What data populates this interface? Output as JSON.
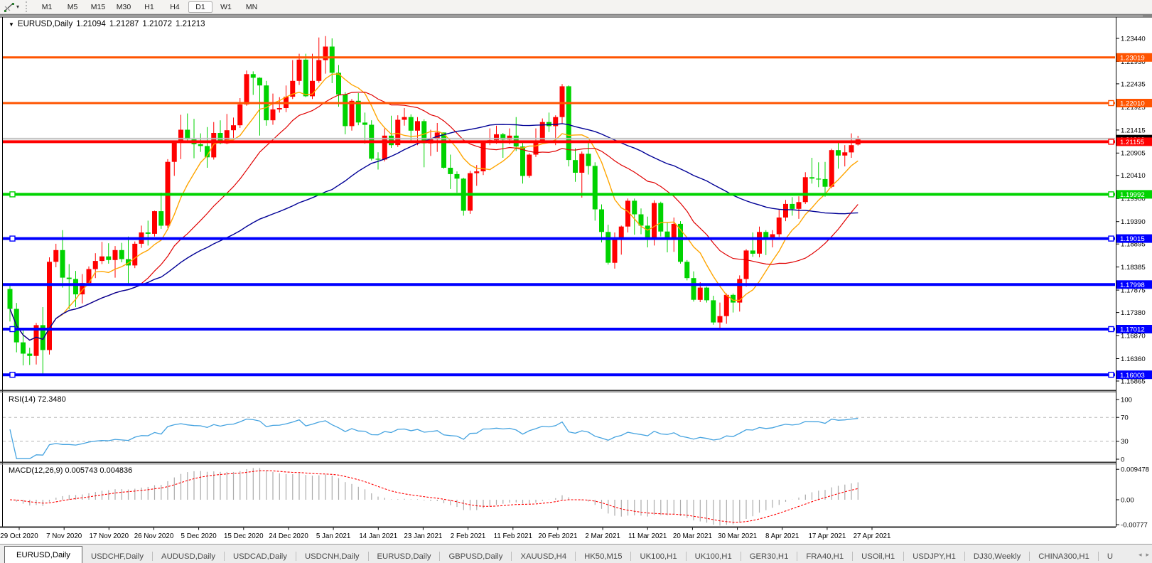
{
  "toolbar": {
    "tool_icon": "line-studies-icon",
    "timeframes": [
      "M1",
      "M5",
      "M15",
      "M30",
      "H1",
      "H4",
      "D1",
      "W1",
      "MN"
    ],
    "active_timeframe": "D1"
  },
  "chart_window": {
    "title": {
      "symbol": "EURUSD,Daily",
      "open": "1.21094",
      "high": "1.21287",
      "low": "1.21072",
      "close": "1.21213"
    },
    "indicators": {
      "rsi_label": "RSI(14) 72.3480",
      "macd_label": "MACD(12,26,9) 0.005743 0.004836"
    }
  },
  "chart_data": {
    "type": "candlestick",
    "symbol": "EURUSD",
    "timeframe": "Daily",
    "last_candle": {
      "open": 1.21094,
      "high": 1.21287,
      "low": 1.21072,
      "close": 1.21213
    },
    "bid_price": 1.21213,
    "bid_label": "1.21213",
    "ask_price": 1.21233,
    "bull_color": "#ff0000",
    "bear_color": "#00d300",
    "candles": [
      [
        1.179,
        1.1797,
        1.1718,
        1.1746
      ],
      [
        1.1746,
        1.1759,
        1.165,
        1.1672
      ],
      [
        1.1672,
        1.1704,
        1.1621,
        1.1647
      ],
      [
        1.1647,
        1.166,
        1.1622,
        1.1642
      ],
      [
        1.1642,
        1.1715,
        1.1623,
        1.171
      ],
      [
        1.171,
        1.175,
        1.1602,
        1.1655
      ],
      [
        1.1655,
        1.186,
        1.1645,
        1.185
      ],
      [
        1.185,
        1.189,
        1.1838,
        1.1876
      ],
      [
        1.1876,
        1.192,
        1.1793,
        1.1815
      ],
      [
        1.1815,
        1.1845,
        1.1745,
        1.1812
      ],
      [
        1.1812,
        1.183,
        1.175,
        1.1778
      ],
      [
        1.1778,
        1.1823,
        1.1758,
        1.1803
      ],
      [
        1.1803,
        1.184,
        1.1799,
        1.1834
      ],
      [
        1.1834,
        1.1869,
        1.1814,
        1.1852
      ],
      [
        1.1852,
        1.1894,
        1.1845,
        1.1862
      ],
      [
        1.1862,
        1.1891,
        1.1846,
        1.1854
      ],
      [
        1.1854,
        1.1885,
        1.1815,
        1.1876
      ],
      [
        1.1876,
        1.1892,
        1.1849,
        1.1856
      ],
      [
        1.1856,
        1.1906,
        1.18,
        1.1842
      ],
      [
        1.1842,
        1.1895,
        1.1836,
        1.189
      ],
      [
        1.189,
        1.193,
        1.1881,
        1.1915
      ],
      [
        1.1915,
        1.1941,
        1.1886,
        1.1912
      ],
      [
        1.1912,
        1.1963,
        1.1906,
        1.1962
      ],
      [
        1.1962,
        1.2003,
        1.1923,
        1.193
      ],
      [
        1.193,
        1.2077,
        1.1925,
        1.2071
      ],
      [
        1.2071,
        1.2118,
        1.204,
        1.2115
      ],
      [
        1.2115,
        1.2175,
        1.2077,
        1.2142
      ],
      [
        1.2142,
        1.2178,
        1.2115,
        1.2121
      ],
      [
        1.2121,
        1.2166,
        1.2079,
        1.211
      ],
      [
        1.211,
        1.2134,
        1.2093,
        1.2106
      ],
      [
        1.2106,
        1.2148,
        1.2058,
        1.2081
      ],
      [
        1.2081,
        1.2159,
        1.2076,
        1.2135
      ],
      [
        1.2135,
        1.2163,
        1.211,
        1.2112
      ],
      [
        1.2112,
        1.2177,
        1.211,
        1.2141
      ],
      [
        1.2141,
        1.2169,
        1.2122,
        1.2152
      ],
      [
        1.2152,
        1.2212,
        1.2146,
        1.2198
      ],
      [
        1.2198,
        1.2273,
        1.2195,
        1.2265
      ],
      [
        1.2265,
        1.2271,
        1.2219,
        1.2257
      ],
      [
        1.2257,
        1.2258,
        1.2129,
        1.224
      ],
      [
        1.224,
        1.225,
        1.2151,
        1.2163
      ],
      [
        1.2163,
        1.2222,
        1.2153,
        1.2187
      ],
      [
        1.2187,
        1.2214,
        1.218,
        1.219
      ],
      [
        1.219,
        1.224,
        1.2181,
        1.2215
      ],
      [
        1.2215,
        1.2296,
        1.221,
        1.225
      ],
      [
        1.225,
        1.231,
        1.2241,
        1.2297
      ],
      [
        1.2297,
        1.231,
        1.2214,
        1.2216
      ],
      [
        1.2216,
        1.231,
        1.221,
        1.225
      ],
      [
        1.225,
        1.2346,
        1.2246,
        1.2296
      ],
      [
        1.2296,
        1.2349,
        1.2266,
        1.2326
      ],
      [
        1.2326,
        1.2344,
        1.2245,
        1.2268
      ],
      [
        1.2268,
        1.2285,
        1.2193,
        1.222
      ],
      [
        1.222,
        1.2225,
        1.2132,
        1.215
      ],
      [
        1.215,
        1.221,
        1.214,
        1.2206
      ],
      [
        1.2206,
        1.2223,
        1.2152,
        1.2158
      ],
      [
        1.2158,
        1.218,
        1.2111,
        1.2153
      ],
      [
        1.2153,
        1.2163,
        1.2074,
        1.2078
      ],
      [
        1.2078,
        1.2092,
        1.2054,
        1.2076
      ],
      [
        1.2076,
        1.2145,
        1.2072,
        1.2129
      ],
      [
        1.2129,
        1.2173,
        1.2102,
        1.2108
      ],
      [
        1.2108,
        1.2174,
        1.2104,
        1.2164
      ],
      [
        1.2164,
        1.219,
        1.2151,
        1.217
      ],
      [
        1.217,
        1.2176,
        1.2116,
        1.214
      ],
      [
        1.214,
        1.217,
        1.2108,
        1.2161
      ],
      [
        1.2161,
        1.2165,
        1.2059,
        1.2112
      ],
      [
        1.2112,
        1.2142,
        1.2084,
        1.2122
      ],
      [
        1.2122,
        1.2157,
        1.2093,
        1.2136
      ],
      [
        1.2136,
        1.2136,
        1.2056,
        1.2058
      ],
      [
        1.2058,
        1.2087,
        1.2011,
        1.2044
      ],
      [
        1.2044,
        1.205,
        1.2003,
        1.2034
      ],
      [
        1.2034,
        1.2036,
        1.1952,
        1.1963
      ],
      [
        1.1963,
        1.2051,
        1.1956,
        1.2046
      ],
      [
        1.2046,
        1.2064,
        1.2018,
        1.205
      ],
      [
        1.205,
        1.2118,
        1.2042,
        1.2117
      ],
      [
        1.2117,
        1.2145,
        1.2108,
        1.2119
      ],
      [
        1.2119,
        1.2151,
        1.2111,
        1.2132
      ],
      [
        1.2132,
        1.2135,
        1.208,
        1.212
      ],
      [
        1.212,
        1.2145,
        1.211,
        1.2129
      ],
      [
        1.2129,
        1.217,
        1.2095,
        1.2105
      ],
      [
        1.2105,
        1.2113,
        1.2023,
        1.204
      ],
      [
        1.204,
        1.209,
        1.2036,
        1.2087
      ],
      [
        1.2087,
        1.2145,
        1.2082,
        1.2118
      ],
      [
        1.2118,
        1.2167,
        1.2115,
        1.2159
      ],
      [
        1.2159,
        1.218,
        1.2137,
        1.215
      ],
      [
        1.215,
        1.2174,
        1.2108,
        1.217
      ],
      [
        1.217,
        1.2243,
        1.2155,
        1.2238
      ],
      [
        1.2238,
        1.224,
        1.2061,
        1.2075
      ],
      [
        1.2075,
        1.2101,
        1.2027,
        1.2047
      ],
      [
        1.2047,
        1.2094,
        1.1992,
        1.2089
      ],
      [
        1.2089,
        1.2113,
        1.2043,
        1.2062
      ],
      [
        1.2062,
        1.207,
        1.1941,
        1.1966
      ],
      [
        1.1966,
        1.1977,
        1.1893,
        1.1916
      ],
      [
        1.1916,
        1.1932,
        1.1844,
        1.1848
      ],
      [
        1.1848,
        1.1915,
        1.1835,
        1.1899
      ],
      [
        1.1899,
        1.193,
        1.1866,
        1.1928
      ],
      [
        1.1928,
        1.199,
        1.1915,
        1.1985
      ],
      [
        1.1985,
        1.199,
        1.191,
        1.1955
      ],
      [
        1.1955,
        1.1968,
        1.1911,
        1.193
      ],
      [
        1.193,
        1.195,
        1.1882,
        1.1899
      ],
      [
        1.1899,
        1.1986,
        1.1886,
        1.198
      ],
      [
        1.198,
        1.1983,
        1.1906,
        1.1917
      ],
      [
        1.1917,
        1.1936,
        1.1871,
        1.1904
      ],
      [
        1.1904,
        1.1948,
        1.1872,
        1.1934
      ],
      [
        1.1934,
        1.194,
        1.1846,
        1.185
      ],
      [
        1.185,
        1.1854,
        1.1809,
        1.1814
      ],
      [
        1.1814,
        1.1829,
        1.1762,
        1.1766
      ],
      [
        1.1766,
        1.1805,
        1.1761,
        1.1793
      ],
      [
        1.1793,
        1.1795,
        1.176,
        1.1765
      ],
      [
        1.1765,
        1.1775,
        1.1711,
        1.1716
      ],
      [
        1.1716,
        1.176,
        1.1702,
        1.173
      ],
      [
        1.173,
        1.178,
        1.1713,
        1.1777
      ],
      [
        1.1777,
        1.178,
        1.1738,
        1.176
      ],
      [
        1.176,
        1.182,
        1.174,
        1.1812
      ],
      [
        1.1812,
        1.1878,
        1.1795,
        1.1875
      ],
      [
        1.1875,
        1.1915,
        1.1861,
        1.1868
      ],
      [
        1.1868,
        1.1928,
        1.186,
        1.1916
      ],
      [
        1.1916,
        1.192,
        1.1865,
        1.1899
      ],
      [
        1.1899,
        1.192,
        1.1882,
        1.1911
      ],
      [
        1.1911,
        1.1967,
        1.1905,
        1.1948
      ],
      [
        1.1948,
        1.1987,
        1.194,
        1.1978
      ],
      [
        1.1978,
        1.1993,
        1.1952,
        1.1967
      ],
      [
        1.1967,
        1.1995,
        1.1945,
        1.1982
      ],
      [
        1.1982,
        1.2048,
        1.1978,
        1.2037
      ],
      [
        1.2037,
        1.208,
        1.2023,
        1.2034
      ],
      [
        1.2034,
        1.207,
        1.2015,
        1.2033
      ],
      [
        1.2033,
        1.2071,
        1.1994,
        1.2016
      ],
      [
        1.2016,
        1.21,
        1.2013,
        1.2097
      ],
      [
        1.2097,
        1.2117,
        1.2056,
        1.2085
      ],
      [
        1.2085,
        1.2108,
        1.2061,
        1.2092
      ],
      [
        1.2092,
        1.2134,
        1.208,
        1.2108
      ],
      [
        1.21094,
        1.21287,
        1.21072,
        1.21213
      ]
    ],
    "x_axis": {
      "date_labels": [
        "29 Oct 2020",
        "7 Nov 2020",
        "17 Nov 2020",
        "26 Nov 2020",
        "5 Dec 2020",
        "15 Dec 2020",
        "24 Dec 2020",
        "5 Jan 2021",
        "14 Jan 2021",
        "23 Jan 2021",
        "2 Feb 2021",
        "11 Feb 2021",
        "20 Feb 2021",
        "2 Mar 2021",
        "11 Mar 2021",
        "20 Mar 2021",
        "30 Mar 2021",
        "8 Apr 2021",
        "17 Apr 2021",
        "27 Apr 2021"
      ]
    },
    "y_axis": {
      "price_ticks": [
        "1.23440",
        "1.22930",
        "1.22435",
        "1.21925",
        "1.21415",
        "1.20905",
        "1.20410",
        "1.19900",
        "1.19390",
        "1.18895",
        "1.18385",
        "1.17875",
        "1.17380",
        "1.16870",
        "1.16360",
        "1.15865"
      ]
    },
    "horizontal_lines": [
      {
        "price": 1.23019,
        "label": "1.23019",
        "color": "#ff5400",
        "width": 3,
        "handles": []
      },
      {
        "price": 1.2201,
        "label": "1.22010",
        "color": "#ff5400",
        "width": 3,
        "handles": [
          "right"
        ]
      },
      {
        "price": 1.21155,
        "label": "1.21155",
        "color": "#ff0000",
        "width": 4,
        "handles": [
          "right"
        ]
      },
      {
        "price": 1.19992,
        "label": "1.19992",
        "color": "#00d300",
        "width": 4,
        "handles": [
          "left",
          "right"
        ]
      },
      {
        "price": 1.19015,
        "label": "1.19015",
        "color": "#0000ff",
        "width": 4,
        "handles": [
          "left",
          "right"
        ]
      },
      {
        "price": 1.17998,
        "label": "1.17998",
        "color": "#0000ff",
        "width": 4,
        "handles": []
      },
      {
        "price": 1.17012,
        "label": "1.17012",
        "color": "#0000ff",
        "width": 4,
        "handles": [
          "left",
          "right"
        ]
      },
      {
        "price": 1.16003,
        "label": "1.16003",
        "color": "#0000ff",
        "width": 4,
        "handles": [
          "left",
          "right"
        ]
      }
    ],
    "moving_averages": [
      {
        "period": 8,
        "color": "#ffa500",
        "width": 1.4
      },
      {
        "period": 20,
        "color": "#e00000",
        "width": 1.2
      },
      {
        "period": 50,
        "color": "#000096",
        "width": 1.4
      }
    ],
    "rsi": {
      "period": 14,
      "value": 72.348,
      "levels": [
        70,
        30
      ],
      "axis_ticks": [
        "100",
        "70",
        "30",
        "0"
      ],
      "color": "#45a3e0"
    },
    "macd": {
      "fast": 12,
      "slow": 26,
      "signal": 9,
      "macd_value": 0.005743,
      "signal_value": 0.004836,
      "axis_ticks": [
        "0.009478",
        "0.00",
        "-0.00777"
      ],
      "histogram_color": "#ababab",
      "signal_color": "#ff0000"
    }
  },
  "tabs": {
    "items": [
      "EURUSD,Daily",
      "USDCHF,Daily",
      "AUDUSD,Daily",
      "USDCAD,Daily",
      "USDCNH,Daily",
      "EURUSD,Daily",
      "GBPUSD,Daily",
      "XAUUSD,H4",
      "HK50,M15",
      "UK100,H1",
      "UK100,H1",
      "GER30,H1",
      "FRA40,H1",
      "USOil,H1",
      "USDJPY,H1",
      "DJ30,Weekly",
      "CHINA300,H1",
      "U"
    ],
    "active_index": 0,
    "scroll_left_icon": "◂",
    "scroll_right_icon": "▸"
  }
}
